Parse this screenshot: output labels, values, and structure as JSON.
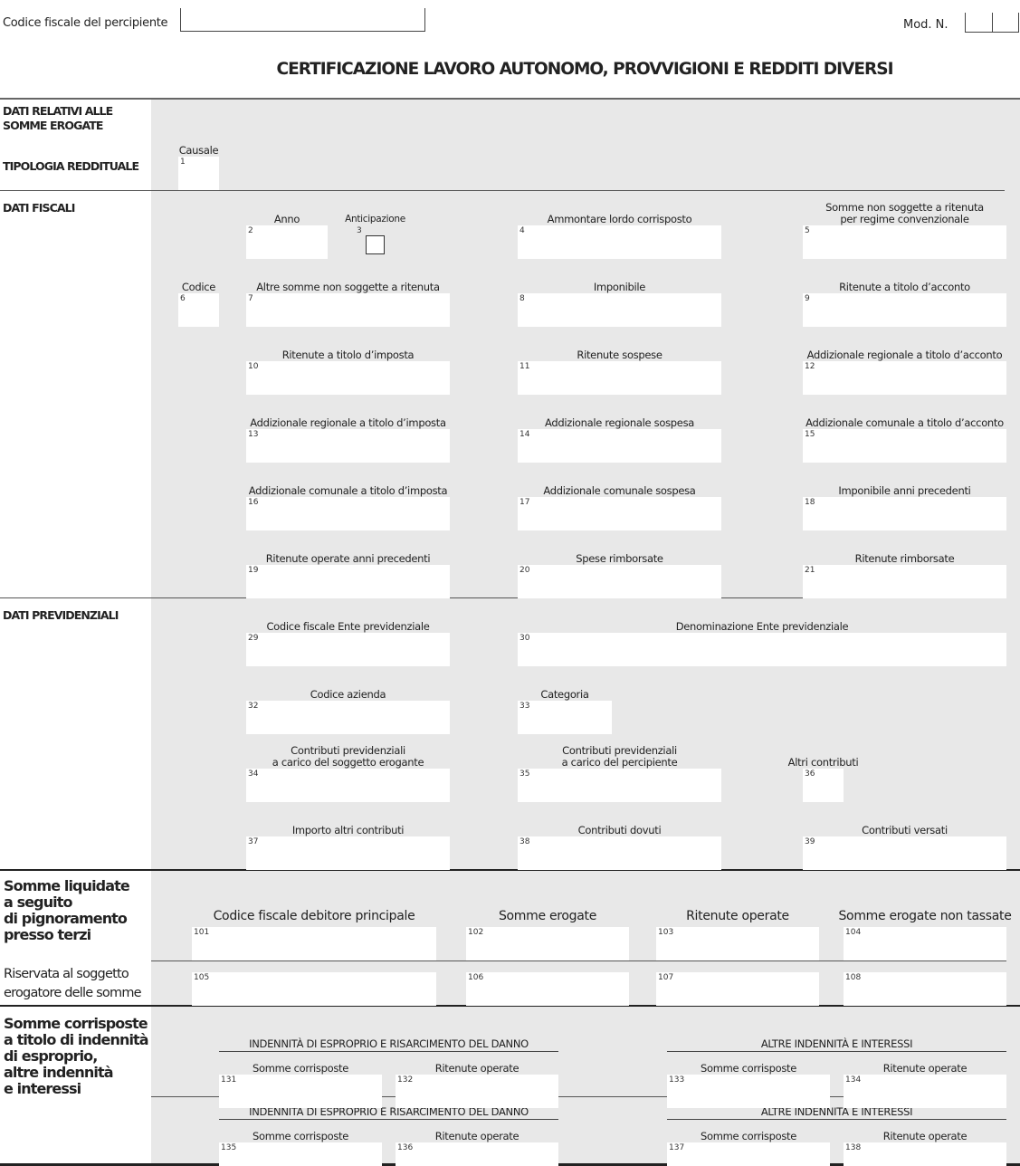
{
  "header": {
    "cf_label": "Codice fiscale del percipiente",
    "cf_value": "",
    "mod_label": "Mod. N.",
    "title": "CERTIFICAZIONE LAVORO AUTONOMO, PROVVIGIONI E REDDITI DIVERSI"
  },
  "sections": {
    "dati_relativi": "DATI RELATIVI ALLE\nSOMME EROGATE",
    "tipologia": "TIPOLOGIA REDDITUALE",
    "dati_fiscali": "DATI FISCALI",
    "dati_previdenziali": "DATI PREVIDENZIALI",
    "pignoramento": "Somme liquidate\na seguito\ndi pignoramento\npresso terzi",
    "riservata": "Riservata al soggetto\nerogatore delle somme",
    "indennita": "Somme corrisposte\na titolo di indennità\ndi esproprio,\naltre indennità\ne interessi"
  },
  "indennita_headers": {
    "esproprio": "INDENNITÀ DI ESPROPRIO E RISARCIMENTO DEL DANNO",
    "altre": "ALTRE INDENNITÀ E INTERESSI"
  },
  "fields": [
    {
      "num": "1",
      "label": "Causale"
    },
    {
      "num": "2",
      "label": "Anno"
    },
    {
      "num": "3",
      "label": "Anticipazione",
      "checked": false
    },
    {
      "num": "4",
      "label": "Ammontare lordo corrisposto"
    },
    {
      "num": "5",
      "label": "Somme non soggette a ritenuta\nper regime convenzionale"
    },
    {
      "num": "6",
      "label": "Codice"
    },
    {
      "num": "7",
      "label": "Altre somme non soggette a ritenuta"
    },
    {
      "num": "8",
      "label": "Imponibile"
    },
    {
      "num": "9",
      "label": "Ritenute a titolo d’acconto"
    },
    {
      "num": "10",
      "label": "Ritenute a titolo d’imposta"
    },
    {
      "num": "11",
      "label": "Ritenute sospese"
    },
    {
      "num": "12",
      "label": "Addizionale regionale a titolo d’acconto"
    },
    {
      "num": "13",
      "label": "Addizionale regionale a titolo d’imposta"
    },
    {
      "num": "14",
      "label": "Addizionale regionale sospesa"
    },
    {
      "num": "15",
      "label": "Addizionale comunale a titolo d’acconto"
    },
    {
      "num": "16",
      "label": "Addizionale comunale a titolo d’imposta"
    },
    {
      "num": "17",
      "label": "Addizionale comunale sospesa"
    },
    {
      "num": "18",
      "label": "Imponibile anni precedenti"
    },
    {
      "num": "19",
      "label": "Ritenute operate anni precedenti"
    },
    {
      "num": "20",
      "label": "Spese rimborsate"
    },
    {
      "num": "21",
      "label": "Ritenute rimborsate"
    },
    {
      "num": "29",
      "label": "Codice fiscale Ente previdenziale"
    },
    {
      "num": "30",
      "label": "Denominazione Ente previdenziale"
    },
    {
      "num": "32",
      "label": "Codice azienda"
    },
    {
      "num": "33",
      "label": "Categoria"
    },
    {
      "num": "34",
      "label": "Contributi previdenziali\na carico del soggetto erogante"
    },
    {
      "num": "35",
      "label": "Contributi previdenziali\na carico del percipiente"
    },
    {
      "num": "36",
      "label": "Altri contributi"
    },
    {
      "num": "37",
      "label": "Importo altri contributi"
    },
    {
      "num": "38",
      "label": "Contributi dovuti"
    },
    {
      "num": "39",
      "label": "Contributi versati"
    },
    {
      "num": "101",
      "label": "Codice fiscale debitore principale"
    },
    {
      "num": "102",
      "label": "Somme erogate"
    },
    {
      "num": "103",
      "label": "Ritenute operate"
    },
    {
      "num": "104",
      "label": "Somme erogate non tassate"
    },
    {
      "num": "105",
      "label": ""
    },
    {
      "num": "106",
      "label": ""
    },
    {
      "num": "107",
      "label": ""
    },
    {
      "num": "108",
      "label": ""
    },
    {
      "num": "131",
      "label": "Somme corrisposte"
    },
    {
      "num": "132",
      "label": "Ritenute operate"
    },
    {
      "num": "133",
      "label": "Somme corrisposte"
    },
    {
      "num": "134",
      "label": "Ritenute operate"
    },
    {
      "num": "135",
      "label": "Somme corrisposte"
    },
    {
      "num": "136",
      "label": "Ritenute operate"
    },
    {
      "num": "137",
      "label": "Somme corrisposte"
    },
    {
      "num": "138",
      "label": "Ritenute operate"
    }
  ]
}
